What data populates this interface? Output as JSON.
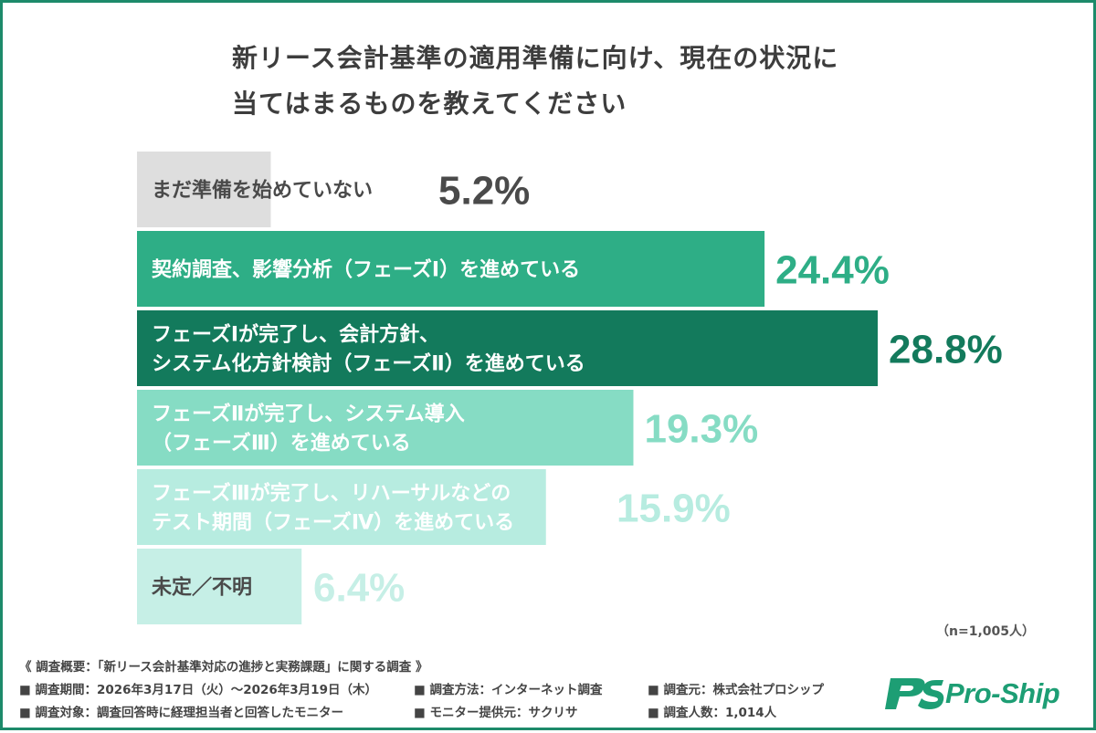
{
  "title_lines": [
    "新リース会計基準の適用準備に向け、現在の状況に",
    "当てはまるものを教えてください"
  ],
  "chart_data": {
    "type": "bar",
    "orientation": "horizontal",
    "categories": [
      [
        "まだ準備を始めていない"
      ],
      [
        "契約調査、影響分析（フェーズⅠ）を進めている"
      ],
      [
        "フェーズⅠが完了し、会計方針、",
        "システム化方針検討（フェーズⅡ）を進めている"
      ],
      [
        "フェーズⅡが完了し、システム導入",
        "（フェーズⅢ）を進めている"
      ],
      [
        "フェーズⅢが完了し、リハーサルなどの",
        "テスト期間（フェーズⅣ）を進めている"
      ],
      [
        "未定／不明"
      ]
    ],
    "values": [
      5.2,
      24.4,
      28.8,
      19.3,
      15.9,
      6.4
    ],
    "value_labels": [
      "5.2%",
      "24.4%",
      "28.8%",
      "19.3%",
      "15.9%",
      "6.4%"
    ],
    "bar_colors": [
      "#dedede",
      "#2eae86",
      "#137a5c",
      "#86dcc4",
      "#b7ece0",
      "#c6efe6"
    ],
    "label_colors": [
      "#4a4a4a",
      "#ffffff",
      "#ffffff",
      "#ffffff",
      "#ffffff",
      "#4a4a4a"
    ],
    "value_colors": [
      "#4a4a4a",
      "#2eae86",
      "#137a5c",
      "#86dcc4",
      "#b7ece0",
      "#c6efe6"
    ],
    "xlim": [
      0,
      30
    ],
    "grid": false
  },
  "sample_note": "（n=1,005人）",
  "footer": {
    "heading": "《 調査概要：「新リース会計基準対応の進捗と実務課題」に関する調査 》",
    "items": [
      "■ 調査期間：2026年3月17日（火）〜2026年3月19日（木）",
      "■ 調査方法：インターネット調査",
      "■ 調査元：株式会社プロシップ",
      "■ 調査対象：調査回答時に経理担当者と回答したモニター",
      "■ モニター提供元：サクリサ",
      "■ 調査人数：1,014人"
    ]
  },
  "logo": {
    "text": "Pro-Ship",
    "mark": "PS",
    "color": "#1d9e74"
  },
  "colors": {
    "border": "#1d8a6a",
    "accent": "#1d9e74"
  }
}
